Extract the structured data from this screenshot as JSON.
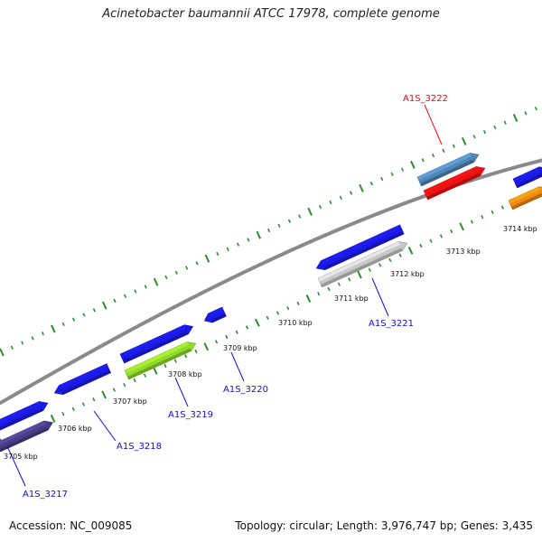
{
  "title": "Acinetobacter baumannii ATCC 17978, complete genome",
  "footer": {
    "accession": "Accession: NC_009085",
    "stats": "Topology: circular; Length: 3,976,747 bp; Genes: 3,435"
  },
  "colors": {
    "backbone": "#888888",
    "tick": "#2e8b2e",
    "label_blue": "#1010cc",
    "label_red": "#dd1111"
  },
  "kbp_ticks": [
    "3705 kbp",
    "3706 kbp",
    "3707 kbp",
    "3708 kbp",
    "3709 kbp",
    "3710 kbp",
    "3711 kbp",
    "3712 kbp",
    "3713 kbp",
    "3714 kbp"
  ],
  "gene_labels": [
    {
      "id": "A1S_3217",
      "color": "#1010cc"
    },
    {
      "id": "A1S_3218",
      "color": "#1010cc"
    },
    {
      "id": "A1S_3219",
      "color": "#1010cc"
    },
    {
      "id": "A1S_3220",
      "color": "#1010cc"
    },
    {
      "id": "A1S_3221",
      "color": "#1010cc"
    },
    {
      "id": "A1S_3222",
      "color": "#dd1111"
    }
  ],
  "feature_colors": [
    "#1a1ae6",
    "#4a3d88",
    "#8fdc2a",
    "#c8c8c8",
    "#4f86b5",
    "#ee1111",
    "#f08a10"
  ]
}
